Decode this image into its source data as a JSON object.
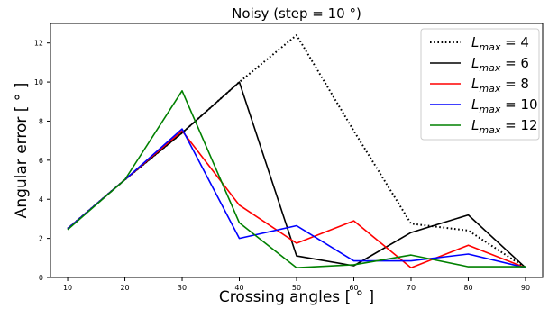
{
  "chart_data": {
    "type": "line",
    "title": "Noisy (step = 10 °)",
    "xlabel": "Crossing angles [ ° ]",
    "ylabel": "Angular error [ ° ]",
    "x": [
      10,
      20,
      30,
      40,
      50,
      60,
      70,
      80,
      90
    ],
    "xlim": [
      7,
      93
    ],
    "ylim": [
      0,
      13
    ],
    "xticks": [
      10,
      20,
      30,
      40,
      50,
      60,
      70,
      80,
      90
    ],
    "yticks": [
      0,
      2,
      4,
      6,
      8,
      10,
      12
    ],
    "grid": false,
    "legend_position": "top-right",
    "series": [
      {
        "name": "L_max = 4",
        "legend_sub": "max",
        "legend_value": "4",
        "color": "#000000",
        "dash": "dotted",
        "values": [
          2.5,
          5.0,
          7.4,
          10.0,
          12.4,
          7.5,
          2.75,
          2.4,
          0.5
        ]
      },
      {
        "name": "L_max = 6",
        "legend_sub": "max",
        "legend_value": "6",
        "color": "#000000",
        "dash": "solid",
        "values": [
          2.5,
          5.0,
          7.4,
          10.0,
          1.1,
          0.6,
          2.3,
          3.2,
          0.5
        ]
      },
      {
        "name": "L_max = 8",
        "legend_sub": "max",
        "legend_value": "8",
        "color": "#ff0000",
        "dash": "solid",
        "values": [
          2.5,
          5.0,
          7.5,
          3.7,
          1.75,
          2.9,
          0.5,
          1.65,
          0.5
        ]
      },
      {
        "name": "L_max = 10",
        "legend_sub": "max",
        "legend_value": "10",
        "color": "#0000ff",
        "dash": "solid",
        "values": [
          2.5,
          5.0,
          7.6,
          2.0,
          2.65,
          0.85,
          0.85,
          1.2,
          0.5
        ]
      },
      {
        "name": "L_max = 12",
        "legend_sub": "max",
        "legend_value": "12",
        "color": "#008000",
        "dash": "solid",
        "values": [
          2.45,
          5.0,
          9.55,
          2.8,
          0.5,
          0.65,
          1.15,
          0.55,
          0.55
        ]
      }
    ]
  }
}
